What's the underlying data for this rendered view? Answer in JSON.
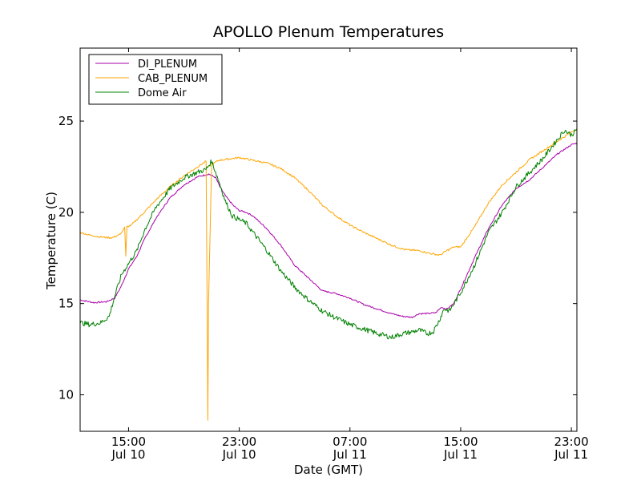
{
  "chart_data": {
    "type": "line",
    "title": "APOLLO Plenum Temperatures",
    "xlabel": "Date (GMT)",
    "ylabel": "Temperature (C)",
    "x_unit": "hours since Jul 10 00:00 GMT",
    "xlim": [
      11.5,
      47.4
    ],
    "ylim": [
      8,
      29
    ],
    "grid": false,
    "legend_position": "top-left",
    "y_ticks": [
      10,
      15,
      20,
      25
    ],
    "x_ticks": [
      {
        "value": 15,
        "line1": "15:00",
        "line2": "Jul 10"
      },
      {
        "value": 23,
        "line1": "23:00",
        "line2": "Jul 10"
      },
      {
        "value": 31,
        "line1": "07:00",
        "line2": "Jul 11"
      },
      {
        "value": 39,
        "line1": "15:00",
        "line2": "Jul 11"
      },
      {
        "value": 47,
        "line1": "23:00",
        "line2": "Jul 11"
      }
    ],
    "series": [
      {
        "name": "DI_PLENUM",
        "color": "#aa00aa",
        "x": [
          11.5,
          12.5,
          13.4,
          14.0,
          14.5,
          15.0,
          15.6,
          16.2,
          17.0,
          18.0,
          19.0,
          20.0,
          20.8,
          21.3,
          21.6,
          22.0,
          22.6,
          23.0,
          23.5,
          24.0,
          25.0,
          26.0,
          27.0,
          28.0,
          29.0,
          30.0,
          31.0,
          32.0,
          33.0,
          34.0,
          34.8,
          35.5,
          36.0,
          36.6,
          37.2,
          37.6,
          38.0,
          38.5,
          39.0,
          40.0,
          41.0,
          42.0,
          43.0,
          44.0,
          45.0,
          46.0,
          47.0,
          47.4
        ],
        "values": [
          15.2,
          15.05,
          15.1,
          15.3,
          16.0,
          16.9,
          17.6,
          18.6,
          19.7,
          20.8,
          21.5,
          21.95,
          22.1,
          21.9,
          21.4,
          20.9,
          20.35,
          20.1,
          20.0,
          19.8,
          19.1,
          18.2,
          17.1,
          16.4,
          15.7,
          15.55,
          15.3,
          14.95,
          14.7,
          14.45,
          14.3,
          14.25,
          14.45,
          14.45,
          14.5,
          14.8,
          14.7,
          15.0,
          15.8,
          17.5,
          19.1,
          20.4,
          21.3,
          21.8,
          22.5,
          23.2,
          23.7,
          23.8
        ]
      },
      {
        "name": "CAB_PLENUM",
        "color": "#ffa500",
        "x": [
          11.5,
          12.2,
          13.0,
          13.8,
          14.4,
          14.6,
          14.72,
          14.8,
          14.88,
          15.2,
          16.0,
          17.0,
          18.0,
          19.0,
          20.0,
          20.6,
          20.68,
          20.73,
          20.78,
          21.0,
          21.5,
          22.0,
          23.0,
          24.0,
          25.0,
          26.0,
          27.0,
          28.0,
          29.0,
          30.0,
          31.0,
          32.0,
          33.0,
          34.0,
          35.0,
          36.0,
          36.8,
          37.5,
          38.0,
          38.5,
          39.0,
          40.0,
          41.0,
          42.0,
          43.0,
          44.0,
          45.0,
          46.0,
          47.0,
          47.4
        ],
        "values": [
          18.9,
          18.75,
          18.65,
          18.6,
          18.8,
          19.0,
          19.2,
          17.6,
          19.2,
          19.3,
          19.9,
          20.7,
          21.4,
          22.0,
          22.5,
          22.8,
          15.0,
          8.6,
          15.0,
          22.6,
          22.85,
          22.9,
          23.0,
          22.85,
          22.7,
          22.4,
          21.9,
          21.2,
          20.4,
          19.8,
          19.3,
          18.9,
          18.55,
          18.2,
          17.95,
          17.9,
          17.75,
          17.65,
          17.9,
          18.1,
          18.1,
          19.2,
          20.5,
          21.5,
          22.2,
          22.9,
          23.4,
          23.9,
          24.4,
          24.6
        ]
      },
      {
        "name": "Dome Air",
        "color": "#008000",
        "x": [
          11.5,
          12.2,
          13.0,
          13.6,
          14.0,
          14.5,
          15.0,
          15.6,
          16.2,
          17.0,
          18.0,
          19.0,
          20.0,
          20.6,
          21.0,
          21.3,
          21.7,
          22.0,
          22.5,
          23.0,
          23.5,
          24.0,
          25.0,
          26.0,
          27.0,
          28.0,
          29.0,
          30.0,
          31.0,
          32.0,
          33.0,
          34.0,
          34.8,
          35.5,
          36.0,
          36.6,
          37.0,
          37.4,
          37.8,
          38.2,
          38.6,
          39.0,
          40.0,
          41.0,
          42.0,
          43.0,
          44.0,
          45.0,
          46.0,
          46.5,
          47.0,
          47.4
        ],
        "values": [
          13.95,
          13.85,
          13.95,
          14.3,
          15.4,
          16.6,
          17.2,
          17.9,
          19.1,
          20.3,
          21.3,
          21.9,
          22.2,
          22.35,
          22.8,
          22.2,
          21.3,
          20.6,
          19.8,
          19.6,
          19.4,
          18.9,
          17.9,
          16.8,
          15.9,
          15.2,
          14.6,
          14.2,
          13.85,
          13.6,
          13.35,
          13.15,
          13.35,
          13.45,
          13.55,
          13.35,
          13.45,
          14.0,
          14.7,
          14.6,
          15.1,
          15.6,
          17.1,
          18.9,
          20.0,
          21.4,
          22.2,
          23.0,
          24.0,
          24.5,
          24.25,
          24.5
        ]
      }
    ]
  }
}
